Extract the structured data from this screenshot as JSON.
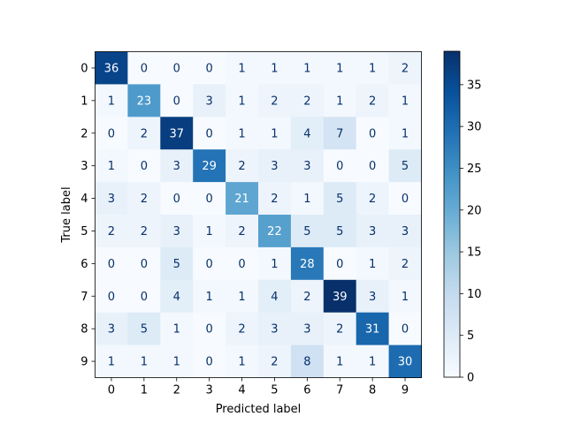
{
  "chart_data": {
    "type": "heatmap",
    "title": "",
    "xlabel": "Predicted label",
    "ylabel": "True label",
    "x_categories": [
      "0",
      "1",
      "2",
      "3",
      "4",
      "5",
      "6",
      "7",
      "8",
      "9"
    ],
    "y_categories": [
      "0",
      "1",
      "2",
      "3",
      "4",
      "5",
      "6",
      "7",
      "8",
      "9"
    ],
    "matrix": [
      [
        36,
        0,
        0,
        0,
        1,
        1,
        1,
        1,
        1,
        2
      ],
      [
        1,
        23,
        0,
        3,
        1,
        2,
        2,
        1,
        2,
        1
      ],
      [
        0,
        2,
        37,
        0,
        1,
        1,
        4,
        7,
        0,
        1
      ],
      [
        1,
        0,
        3,
        29,
        2,
        3,
        3,
        0,
        0,
        5
      ],
      [
        3,
        2,
        0,
        0,
        21,
        2,
        1,
        5,
        2,
        0
      ],
      [
        2,
        2,
        3,
        1,
        2,
        22,
        5,
        5,
        3,
        3
      ],
      [
        0,
        0,
        5,
        0,
        0,
        1,
        28,
        0,
        1,
        2
      ],
      [
        0,
        0,
        4,
        1,
        1,
        4,
        2,
        39,
        3,
        1
      ],
      [
        3,
        5,
        1,
        0,
        2,
        3,
        3,
        2,
        31,
        0
      ],
      [
        1,
        1,
        1,
        0,
        1,
        2,
        8,
        1,
        1,
        30
      ]
    ],
    "colormap": "Blues",
    "colorbar": {
      "range": [
        0,
        39
      ],
      "ticks": [
        0,
        5,
        10,
        15,
        20,
        25,
        30,
        35
      ]
    },
    "grid": false,
    "legend": "colorbar-right"
  }
}
